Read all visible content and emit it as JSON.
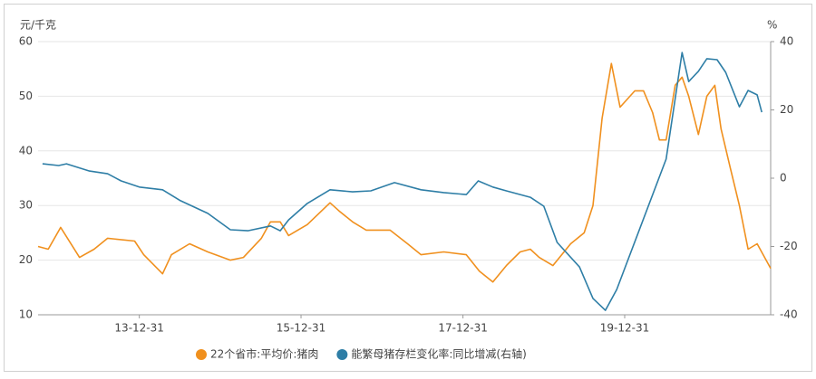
{
  "chart_data": {
    "type": "line",
    "y_label": "元/千克",
    "y2_label": "%",
    "xlim": [
      "12-09-30",
      "21-10-20"
    ],
    "xticks": [
      "13-12-31",
      "15-12-31",
      "17-12-31",
      "19-12-31"
    ],
    "ylim": [
      10,
      60
    ],
    "yticks": [
      10,
      20,
      30,
      40,
      50,
      60
    ],
    "y2lim": [
      -40,
      40
    ],
    "y2ticks": [
      -40,
      -20,
      0,
      20,
      40
    ],
    "grid": true,
    "legend": "bottom",
    "series": [
      {
        "name": "22个省市:平均价:猪肉",
        "color": "#f0901e",
        "x": [
          "12-09-30",
          "12-11-15",
          "13-01-10",
          "13-04-05",
          "13-06-10",
          "13-08-10",
          "13-12-10",
          "14-01-20",
          "14-04-15",
          "14-05-25",
          "14-08-15",
          "14-11-05",
          "15-02-15",
          "15-04-15",
          "15-07-05",
          "15-08-15",
          "15-09-28",
          "15-11-05",
          "16-01-28",
          "16-05-10",
          "16-06-20",
          "16-08-20",
          "16-10-20",
          "17-02-05",
          "17-04-25",
          "17-06-25",
          "17-10-05",
          "18-01-15",
          "18-03-15",
          "18-05-15",
          "18-07-15",
          "18-09-15",
          "18-10-31",
          "18-12-10",
          "19-02-10",
          "19-05-01",
          "19-07-01",
          "19-08-10",
          "19-09-20",
          "19-11-01",
          "19-12-10",
          "20-02-15",
          "20-03-25",
          "20-05-05",
          "20-06-05",
          "20-07-05",
          "20-08-15",
          "20-09-15",
          "20-10-15",
          "20-11-28",
          "21-01-05",
          "21-02-10",
          "21-03-10",
          "21-04-20",
          "21-06-01",
          "21-07-10",
          "21-08-20",
          "21-10-20"
        ],
        "values": [
          22.5,
          22,
          26,
          20.5,
          22,
          24,
          23.5,
          21,
          17.5,
          21,
          23,
          21.5,
          20,
          20.5,
          24,
          27,
          27,
          24.5,
          26.5,
          30.5,
          29,
          27,
          25.5,
          25.5,
          23,
          21,
          21.5,
          21,
          18,
          16,
          19,
          21.5,
          22,
          20.5,
          19,
          23,
          25,
          30,
          46,
          56,
          48,
          51,
          51,
          47,
          42,
          42,
          52,
          53.5,
          50,
          43,
          50,
          52,
          44,
          37,
          30,
          22,
          23,
          18.5
        ]
      },
      {
        "name": "能繁母猪存栏变化率:同比增减(右轴)",
        "color": "#2e7ea6",
        "axis": "y2",
        "x": [
          "12-10-20",
          "13-01-01",
          "13-02-05",
          "13-05-20",
          "13-08-10",
          "13-10-10",
          "13-12-31",
          "14-04-15",
          "14-07-05",
          "14-11-05",
          "15-02-15",
          "15-05-05",
          "15-08-15",
          "15-09-28",
          "15-11-05",
          "16-01-28",
          "16-05-10",
          "16-08-20",
          "16-11-10",
          "17-02-25",
          "17-06-25",
          "17-10-05",
          "18-01-15",
          "18-03-10",
          "18-05-15",
          "18-07-15",
          "18-10-31",
          "18-12-31",
          "19-03-01",
          "19-06-10",
          "19-08-10",
          "19-10-05",
          "19-11-25",
          "20-07-05",
          "20-09-15",
          "20-10-15",
          "20-11-28",
          "21-01-05",
          "21-02-20",
          "21-03-31",
          "21-06-01",
          "21-07-10",
          "21-08-20",
          "21-09-10"
        ],
        "values": [
          4.2,
          3.7,
          4.2,
          2.1,
          1.3,
          -0.8,
          -2.6,
          -3.4,
          -6.6,
          -10.3,
          -15.1,
          -15.4,
          -14,
          -15.4,
          -12.2,
          -7.4,
          -3.4,
          -4,
          -3.7,
          -1.3,
          -3.4,
          -4.2,
          -4.8,
          -0.8,
          -2.6,
          -3.7,
          -5.6,
          -8.2,
          -18.8,
          -26,
          -35.2,
          -38.7,
          -32.6,
          5.6,
          36.8,
          28.3,
          31.3,
          35,
          34.7,
          31,
          20.9,
          25.7,
          24.4,
          19.3
        ]
      }
    ]
  }
}
